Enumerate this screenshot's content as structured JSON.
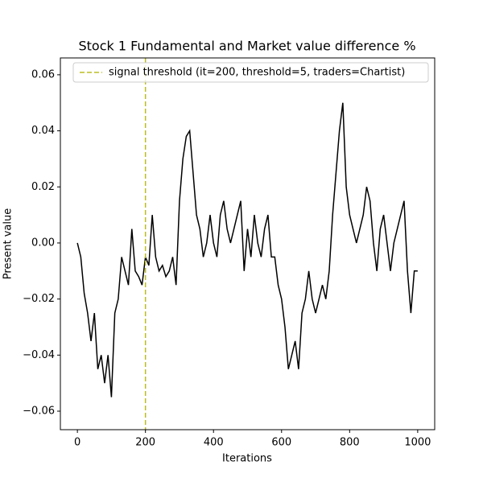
{
  "chart_data": {
    "type": "line",
    "title": "Stock 1 Fundamental and Market value difference %",
    "xlabel": "Iterations",
    "ylabel": "Present value",
    "x": [
      0,
      10,
      20,
      30,
      40,
      50,
      60,
      70,
      80,
      90,
      100,
      110,
      120,
      130,
      140,
      150,
      160,
      170,
      180,
      190,
      200,
      210,
      220,
      230,
      240,
      250,
      260,
      270,
      280,
      290,
      300,
      310,
      320,
      330,
      340,
      350,
      360,
      370,
      380,
      390,
      400,
      410,
      420,
      430,
      440,
      450,
      460,
      470,
      480,
      490,
      500,
      510,
      520,
      530,
      540,
      550,
      560,
      570,
      580,
      590,
      600,
      610,
      620,
      630,
      640,
      650,
      660,
      670,
      680,
      690,
      700,
      710,
      720,
      730,
      740,
      750,
      760,
      770,
      780,
      790,
      800,
      810,
      820,
      830,
      840,
      850,
      860,
      870,
      880,
      890,
      900,
      910,
      920,
      930,
      940,
      950,
      960,
      970,
      980,
      990,
      1000
    ],
    "series": [
      {
        "color": "#000000",
        "values": [
          0.0,
          -0.005,
          -0.018,
          -0.025,
          -0.035,
          -0.025,
          -0.045,
          -0.04,
          -0.05,
          -0.04,
          -0.055,
          -0.025,
          -0.02,
          -0.005,
          -0.01,
          -0.015,
          0.005,
          -0.01,
          -0.012,
          -0.015,
          -0.005,
          -0.008,
          0.01,
          -0.005,
          -0.01,
          -0.008,
          -0.012,
          -0.01,
          -0.005,
          -0.015,
          0.015,
          0.03,
          0.038,
          0.04,
          0.025,
          0.01,
          0.005,
          -0.005,
          0.0,
          0.01,
          0.0,
          -0.005,
          0.01,
          0.015,
          0.005,
          0.0,
          0.005,
          0.01,
          0.015,
          -0.01,
          0.005,
          -0.005,
          0.01,
          0.0,
          -0.005,
          0.005,
          0.01,
          -0.005,
          -0.005,
          -0.015,
          -0.02,
          -0.03,
          -0.045,
          -0.04,
          -0.035,
          -0.045,
          -0.025,
          -0.02,
          -0.01,
          -0.02,
          -0.025,
          -0.02,
          -0.015,
          -0.02,
          -0.01,
          0.01,
          0.025,
          0.04,
          0.05,
          0.02,
          0.01,
          0.005,
          0.0,
          0.005,
          0.01,
          0.02,
          0.015,
          0.0,
          -0.01,
          0.005,
          0.01,
          0.0,
          -0.01,
          0.0,
          0.005,
          0.01,
          0.015,
          -0.01,
          -0.025,
          -0.01,
          -0.01
        ]
      }
    ],
    "vlines": [
      {
        "x": 200,
        "color": "#bcbd22",
        "label": "signal threshold (it=200, threshold=5, traders=Chartist)"
      }
    ],
    "legend": "upper right",
    "xlim": [
      -50,
      1050
    ],
    "ylim": [
      -0.0666,
      0.066
    ],
    "xticks": [
      0,
      200,
      400,
      600,
      800,
      1000
    ],
    "yticks": [
      {
        "value": -0.06,
        "label": "−0.06"
      },
      {
        "value": -0.04,
        "label": "−0.04"
      },
      {
        "value": -0.02,
        "label": "−0.02"
      },
      {
        "value": 0,
        "label": "0.00"
      },
      0.02,
      0.04,
      0.06
    ]
  }
}
